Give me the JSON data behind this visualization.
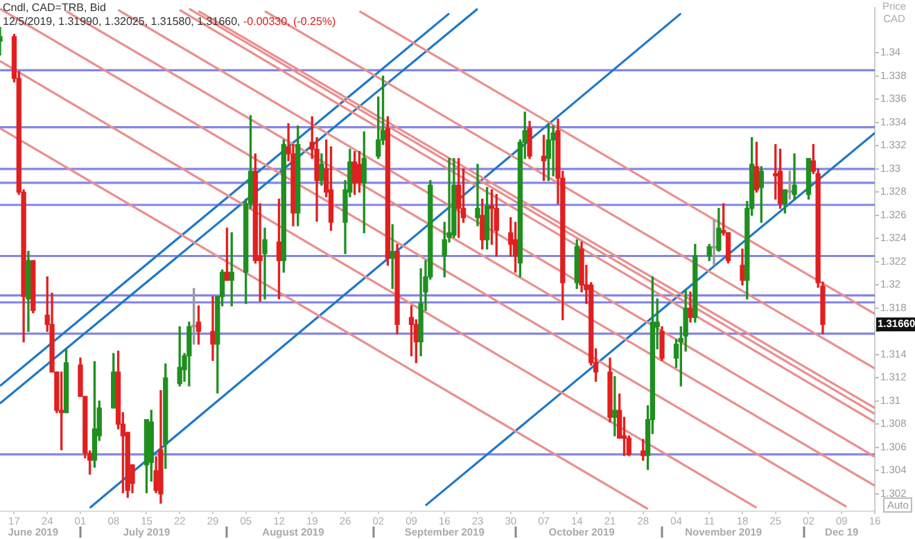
{
  "chart_data": {
    "type": "candlestick",
    "title": "Cndl, CAD=TRB, Bid",
    "subtitle": "12/5/2019, 1.31990, 1.32025, 1.31580, 1.31660,",
    "ylabel": "Price CAD",
    "annotations": [
      "-0.00330, (-0.25%)",
      "Auto",
      "1.31660"
    ],
    "legend": false,
    "grid": false,
    "xlim": [
      "2019-06-14",
      "2019-12-16"
    ],
    "xticks": [
      {
        "value": "2019-06-17",
        "label": "17"
      },
      {
        "value": "2019-06-24",
        "label": "24"
      },
      {
        "value": "2019-07-01",
        "label": "01"
      },
      {
        "value": "2019-07-08",
        "label": "08"
      },
      {
        "value": "2019-07-15",
        "label": "15"
      },
      {
        "value": "2019-07-22",
        "label": "22"
      },
      {
        "value": "2019-07-29",
        "label": "29"
      },
      {
        "value": "2019-08-05",
        "label": "05"
      },
      {
        "value": "2019-08-12",
        "label": "12"
      },
      {
        "value": "2019-08-19",
        "label": "19"
      },
      {
        "value": "2019-08-26",
        "label": "26"
      },
      {
        "value": "2019-09-02",
        "label": "02"
      },
      {
        "value": "2019-09-09",
        "label": "09"
      },
      {
        "value": "2019-09-16",
        "label": "16"
      },
      {
        "value": "2019-09-23",
        "label": "23"
      },
      {
        "value": "2019-09-30",
        "label": "30"
      },
      {
        "value": "2019-10-07",
        "label": "07"
      },
      {
        "value": "2019-10-14",
        "label": "14"
      },
      {
        "value": "2019-10-21",
        "label": "21"
      },
      {
        "value": "2019-10-28",
        "label": "28"
      },
      {
        "value": "2019-11-04",
        "label": "04"
      },
      {
        "value": "2019-11-11",
        "label": "11"
      },
      {
        "value": "2019-11-18",
        "label": "18"
      },
      {
        "value": "2019-11-25",
        "label": "25"
      },
      {
        "value": "2019-12-02",
        "label": "02"
      },
      {
        "value": "2019-12-09",
        "label": "09"
      },
      {
        "value": "2019-12-16",
        "label": "16"
      }
    ],
    "x2lim": [
      "2019-06-14",
      "2019-12-16"
    ],
    "x2ticks": [
      {
        "value": "2019-06-21",
        "label": "June 2019"
      },
      {
        "value": "2019-07-01",
        "label": null
      },
      {
        "value": "2019-07-15",
        "label": "July 2019"
      },
      {
        "value": "2019-08-01",
        "label": null
      },
      {
        "value": "2019-08-15",
        "label": "August 2019"
      },
      {
        "value": "2019-09-01",
        "label": null
      },
      {
        "value": "2019-09-16",
        "label": "September 2019"
      },
      {
        "value": "2019-10-01",
        "label": null
      },
      {
        "value": "2019-10-15",
        "label": "October 2019"
      },
      {
        "value": "2019-11-01",
        "label": null
      },
      {
        "value": "2019-11-14",
        "label": "November 2019"
      },
      {
        "value": "2019-12-01",
        "label": null
      },
      {
        "value": "2019-12-09",
        "label": "Dec 19"
      }
    ],
    "ylim": [
      1.3005,
      1.3439
    ],
    "yticks": [
      1.302,
      1.304,
      1.306,
      1.308,
      1.31,
      1.312,
      1.314,
      {
        "value": 1.316,
        "label": null
      },
      1.318,
      1.32,
      1.322,
      1.324,
      1.326,
      1.328,
      1.33,
      1.332,
      1.334,
      1.336,
      1.338,
      1.34
    ],
    "ref_lines": [
      {
        "axis": "y",
        "value": 1.3385,
        "color": "#8585e6"
      },
      {
        "axis": "y",
        "value": 1.3336,
        "color": "#8585e6"
      },
      {
        "axis": "y",
        "value": 1.33,
        "color": "#8585e6"
      },
      {
        "axis": "y",
        "value": 1.3288,
        "color": "#8585e6"
      },
      {
        "axis": "y",
        "value": 1.3269,
        "color": "#8585e6"
      },
      {
        "axis": "y",
        "value": 1.3225,
        "color": "#8585e6"
      },
      {
        "axis": "y",
        "value": 1.3191,
        "color": "#8585e6"
      },
      {
        "axis": "y",
        "value": 1.3185,
        "color": "#8585e6"
      },
      {
        "axis": "y",
        "value": 1.3158,
        "color": "#8585e6"
      },
      {
        "axis": "y",
        "value": 1.3054,
        "color": "#8585e6"
      }
    ],
    "x": [
      "2019-06-14",
      "2019-06-17",
      "2019-06-18",
      "2019-06-19",
      "2019-06-20",
      "2019-06-21",
      "2019-06-24",
      "2019-06-25",
      "2019-06-26",
      "2019-06-27",
      "2019-06-28",
      "2019-07-01",
      "2019-07-02",
      "2019-07-03",
      "2019-07-04",
      "2019-07-05",
      "2019-07-08",
      "2019-07-09",
      "2019-07-10",
      "2019-07-11",
      "2019-07-12",
      "2019-07-15",
      "2019-07-16",
      "2019-07-17",
      "2019-07-18",
      "2019-07-19",
      "2019-07-22",
      "2019-07-23",
      "2019-07-24",
      "2019-07-25",
      "2019-07-26",
      "2019-07-29",
      "2019-07-30",
      "2019-07-31",
      "2019-08-01",
      "2019-08-02",
      "2019-08-05",
      "2019-08-06",
      "2019-08-07",
      "2019-08-08",
      "2019-08-09",
      "2019-08-12",
      "2019-08-13",
      "2019-08-14",
      "2019-08-15",
      "2019-08-16",
      "2019-08-19",
      "2019-08-20",
      "2019-08-21",
      "2019-08-22",
      "2019-08-23",
      "2019-08-26",
      "2019-08-27",
      "2019-08-28",
      "2019-08-29",
      "2019-08-30",
      "2019-09-02",
      "2019-09-03",
      "2019-09-04",
      "2019-09-05",
      "2019-09-06",
      "2019-09-09",
      "2019-09-10",
      "2019-09-11",
      "2019-09-12",
      "2019-09-13",
      "2019-09-16",
      "2019-09-17",
      "2019-09-18",
      "2019-09-19",
      "2019-09-20",
      "2019-09-23",
      "2019-09-24",
      "2019-09-25",
      "2019-09-26",
      "2019-09-27",
      "2019-09-30",
      "2019-10-01",
      "2019-10-02",
      "2019-10-03",
      "2019-10-04",
      "2019-10-07",
      "2019-10-08",
      "2019-10-09",
      "2019-10-10",
      "2019-10-11",
      "2019-10-14",
      "2019-10-15",
      "2019-10-16",
      "2019-10-17",
      "2019-10-18",
      "2019-10-21",
      "2019-10-22",
      "2019-10-23",
      "2019-10-24",
      "2019-10-25",
      "2019-10-28",
      "2019-10-29",
      "2019-10-30",
      "2019-10-31",
      "2019-11-01",
      "2019-11-04",
      "2019-11-05",
      "2019-11-06",
      "2019-11-07",
      "2019-11-08",
      "2019-11-11",
      "2019-11-12",
      "2019-11-13",
      "2019-11-14",
      "2019-11-15",
      "2019-11-18",
      "2019-11-19",
      "2019-11-20",
      "2019-11-21",
      "2019-11-22",
      "2019-11-25",
      "2019-11-26",
      "2019-11-27",
      "2019-11-28",
      "2019-11-29",
      "2019-12-02",
      "2019-12-03",
      "2019-12-04",
      "2019-12-05"
    ],
    "ohlc": [
      [
        1.341,
        1.3422,
        1.3398,
        1.3414
      ],
      [
        1.3414,
        1.3416,
        1.3375,
        1.3378
      ],
      [
        1.3378,
        1.3384,
        1.3278,
        1.328
      ],
      [
        1.328,
        1.3282,
        1.3151,
        1.319
      ],
      [
        1.3188,
        1.3229,
        1.316,
        1.3221
      ],
      [
        1.3221,
        1.3221,
        1.3176,
        1.3178
      ],
      [
        1.3174,
        1.3207,
        1.316,
        1.3166
      ],
      [
        1.3166,
        1.3193,
        1.3125,
        1.3125
      ],
      [
        1.3125,
        1.3125,
        1.309,
        1.3092
      ],
      [
        1.3092,
        1.3125,
        1.3058,
        1.309
      ],
      [
        1.309,
        1.3145,
        1.309,
        1.3133
      ],
      [
        1.3131,
        1.3137,
        1.3104,
        1.3104
      ],
      [
        1.3104,
        1.3104,
        1.3051,
        1.3055
      ],
      [
        1.3055,
        1.3057,
        1.3037,
        1.3049
      ],
      [
        1.3049,
        1.3134,
        1.3043,
        1.3076
      ],
      [
        1.307,
        1.31,
        1.3066,
        1.3094
      ],
      [
        1.3094,
        1.3141,
        1.3094,
        1.3125
      ],
      [
        1.3125,
        1.3143,
        1.3076,
        1.308
      ],
      [
        1.308,
        1.309,
        1.3021,
        1.307
      ],
      [
        1.3073,
        1.3073,
        1.3017,
        1.3023
      ],
      [
        1.3045,
        1.3045,
        1.3021,
        1.3029
      ],
      [
        1.3045,
        1.3084,
        1.3021,
        1.3084
      ],
      [
        1.3047,
        1.3092,
        1.3031,
        1.3082
      ],
      [
        1.304,
        1.3052,
        1.3021,
        1.3023
      ],
      [
        1.3058,
        1.3109,
        1.3012,
        1.302
      ],
      [
        1.3063,
        1.3132,
        1.3042,
        1.312
      ],
      [
        1.3115,
        1.3164,
        1.3113,
        1.3129
      ],
      [
        1.3127,
        1.3141,
        1.3117,
        1.3139
      ],
      [
        1.3139,
        1.3168,
        1.3113,
        1.3164
      ],
      [
        1.3164,
        1.3197,
        1.3149,
        1.3164
      ],
      [
        1.3168,
        1.3182,
        1.3149,
        1.316
      ],
      [
        1.316,
        1.319,
        1.3135,
        1.3149
      ],
      [
        1.3149,
        1.319,
        1.3107,
        1.319
      ],
      [
        1.319,
        1.3213,
        1.3182,
        1.3211
      ],
      [
        1.3211,
        1.3249,
        1.3204,
        1.3204
      ],
      [
        1.3204,
        1.3245,
        1.3182,
        1.3211
      ],
      [
        1.3211,
        1.3274,
        1.3184,
        1.327
      ],
      [
        1.327,
        1.3346,
        1.3266,
        1.3298
      ],
      [
        1.3298,
        1.3313,
        1.3219,
        1.3221
      ],
      [
        1.3225,
        1.327,
        1.3186,
        1.3221
      ],
      [
        1.3227,
        1.3249,
        1.3188,
        1.3239
      ],
      [
        1.3237,
        1.3274,
        1.3188,
        1.3221
      ],
      [
        1.3221,
        1.3325,
        1.3211,
        1.3321
      ],
      [
        1.3319,
        1.3339,
        1.3307,
        1.3313
      ],
      [
        1.3313,
        1.3321,
        1.3251,
        1.3262
      ],
      [
        1.3262,
        1.3337,
        1.3251,
        1.3321
      ],
      [
        1.3323,
        1.3345,
        1.3309,
        1.3317
      ],
      [
        1.3317,
        1.3327,
        1.3255,
        1.329
      ],
      [
        1.329,
        1.3313,
        1.3286,
        1.3304
      ],
      [
        1.33,
        1.3325,
        1.3276,
        1.328
      ],
      [
        1.3282,
        1.3319,
        1.3247,
        1.3254
      ],
      [
        1.3254,
        1.329,
        1.3227,
        1.3282
      ],
      [
        1.328,
        1.3317,
        1.3276,
        1.3306
      ],
      [
        1.3306,
        1.3315,
        1.3278,
        1.3288
      ],
      [
        1.3304,
        1.3315,
        1.328,
        1.3288
      ],
      [
        1.3288,
        1.3332,
        1.3245,
        1.3309
      ],
      [
        1.3311,
        1.3362,
        1.3309,
        1.3325
      ],
      [
        1.3325,
        1.338,
        1.3321,
        1.3333
      ],
      [
        1.3335,
        1.3345,
        1.3217,
        1.3223
      ],
      [
        1.3223,
        1.3252,
        1.3197,
        1.3229
      ],
      [
        1.3229,
        1.3235,
        1.3158,
        1.3166
      ],
      [
        1.3172,
        1.3182,
        1.3139,
        1.3166
      ],
      [
        1.3166,
        1.317,
        1.3133,
        1.3151
      ],
      [
        1.3151,
        1.3214,
        1.3139,
        1.3184
      ],
      [
        1.3194,
        1.3221,
        1.3178,
        1.3207
      ],
      [
        1.3207,
        1.329,
        1.3205,
        1.3286
      ],
      [
        1.3225,
        1.3254,
        1.3207,
        1.3239
      ],
      [
        1.3241,
        1.3309,
        1.3237,
        1.3245
      ],
      [
        1.3243,
        1.3309,
        1.3241,
        1.3286
      ],
      [
        1.3286,
        1.3309,
        1.3241,
        1.3266
      ],
      [
        1.3266,
        1.33,
        1.3254,
        1.3258
      ],
      [
        1.3258,
        1.3304,
        1.3251,
        1.3266
      ],
      [
        1.326,
        1.3274,
        1.3231,
        1.3239
      ],
      [
        1.3239,
        1.3284,
        1.3231,
        1.3268
      ],
      [
        1.3268,
        1.3282,
        1.3235,
        1.3266
      ],
      [
        1.3266,
        1.3278,
        1.3225,
        1.3247
      ],
      [
        1.3245,
        1.3258,
        1.3225,
        1.3235
      ],
      [
        1.3239,
        1.3254,
        1.3211,
        1.3225
      ],
      [
        1.3219,
        1.3325,
        1.3207,
        1.3323
      ],
      [
        1.3323,
        1.3349,
        1.3309,
        1.3333
      ],
      [
        1.3335,
        1.3341,
        1.3309,
        1.3311
      ],
      [
        1.3311,
        1.3329,
        1.329,
        1.3307
      ],
      [
        1.3309,
        1.3339,
        1.329,
        1.3325
      ],
      [
        1.3325,
        1.3337,
        1.3294,
        1.3331
      ],
      [
        1.3333,
        1.3343,
        1.327,
        1.3292
      ],
      [
        1.3292,
        1.3298,
        1.317,
        1.3202
      ],
      [
        1.3202,
        1.3239,
        1.3197,
        1.3233
      ],
      [
        1.3231,
        1.3237,
        1.3194,
        1.32
      ],
      [
        1.32,
        1.3217,
        1.3184,
        1.3196
      ],
      [
        1.32,
        1.3202,
        1.3131,
        1.3133
      ],
      [
        1.3133,
        1.3145,
        1.3117,
        1.3125
      ],
      [
        1.3125,
        1.3137,
        1.3082,
        1.3086
      ],
      [
        1.3086,
        1.3121,
        1.307,
        1.3092
      ],
      [
        1.3092,
        1.3106,
        1.3068,
        1.3068
      ],
      [
        1.307,
        1.3086,
        1.3053,
        1.3068
      ],
      [
        1.3068,
        1.307,
        1.3053,
        1.3054
      ],
      [
        1.3057,
        1.3067,
        1.3049,
        1.3053
      ],
      [
        1.3053,
        1.3096,
        1.3041,
        1.3084
      ],
      [
        1.3084,
        1.3207,
        1.3072,
        1.3168
      ],
      [
        1.3164,
        1.3188,
        1.3145,
        1.3168
      ],
      [
        1.316,
        1.3164,
        1.3135,
        1.3137
      ],
      [
        1.3137,
        1.3153,
        1.3129,
        1.3149
      ],
      [
        1.3151,
        1.3164,
        1.3113,
        1.3154
      ],
      [
        1.3156,
        1.3196,
        1.3143,
        1.318
      ],
      [
        1.318,
        1.3194,
        1.3168,
        1.3172
      ],
      [
        1.3172,
        1.3235,
        1.3168,
        1.3225
      ],
      [
        1.3225,
        1.3235,
        1.3221,
        1.3233
      ],
      [
        1.3232,
        1.3256,
        1.3217,
        1.3232
      ],
      [
        1.323,
        1.3266,
        1.3229,
        1.3249
      ],
      [
        1.3247,
        1.327,
        1.3243,
        1.3245
      ],
      [
        1.3245,
        1.3245,
        1.3219,
        1.3221
      ],
      [
        1.3217,
        1.3231,
        1.32,
        1.3204
      ],
      [
        1.3204,
        1.3272,
        1.3188,
        1.3266
      ],
      [
        1.3266,
        1.3327,
        1.326,
        1.3304
      ],
      [
        1.3302,
        1.3323,
        1.328,
        1.3282
      ],
      [
        1.3284,
        1.3302,
        1.3254,
        1.3298
      ],
      [
        1.3296,
        1.3321,
        1.3274,
        1.3294
      ],
      [
        1.3298,
        1.3317,
        1.3266,
        1.327
      ],
      [
        1.327,
        1.3282,
        1.3262,
        1.3282
      ],
      [
        1.328,
        1.3298,
        1.3274,
        1.328
      ],
      [
        1.3278,
        1.3313,
        1.3274,
        1.3286
      ],
      [
        1.3278,
        1.3309,
        1.3274,
        1.3309
      ],
      [
        1.3307,
        1.3321,
        1.3296,
        1.3298
      ],
      [
        1.3296,
        1.33,
        1.3198,
        1.3202
      ],
      [
        1.3199,
        1.32025,
        1.3158,
        1.3166
      ]
    ],
    "colors": [
      "#1f8f1f",
      "#e02020",
      "#e02020",
      "#e02020",
      "#1f8f1f",
      "#e02020",
      "#e02020",
      "#e02020",
      "#e02020",
      "#e02020",
      "#1f8f1f",
      "#e02020",
      "#e02020",
      "#e02020",
      "#1f8f1f",
      "#1f8f1f",
      "#1f8f1f",
      "#e02020",
      "#e02020",
      "#e02020",
      "#e02020",
      "#1f8f1f",
      "#1f8f1f",
      "#e02020",
      "#e02020",
      "#1f8f1f",
      "#1f8f1f",
      "#1f8f1f",
      "#1f8f1f",
      "#999999",
      "#e02020",
      "#e02020",
      "#1f8f1f",
      "#1f8f1f",
      "#e02020",
      "#1f8f1f",
      "#1f8f1f",
      "#1f8f1f",
      "#e02020",
      "#e02020",
      "#1f8f1f",
      "#e02020",
      "#1f8f1f",
      "#e02020",
      "#e02020",
      "#1f8f1f",
      "#e02020",
      "#e02020",
      "#1f8f1f",
      "#e02020",
      "#e02020",
      "#1f8f1f",
      "#1f8f1f",
      "#e02020",
      "#e02020",
      "#1f8f1f",
      "#1f8f1f",
      "#1f8f1f",
      "#e02020",
      "#1f8f1f",
      "#e02020",
      "#e02020",
      "#e02020",
      "#1f8f1f",
      "#1f8f1f",
      "#1f8f1f",
      "#1f8f1f",
      "#1f8f1f",
      "#1f8f1f",
      "#e02020",
      "#e02020",
      "#1f8f1f",
      "#e02020",
      "#1f8f1f",
      "#e02020",
      "#e02020",
      "#e02020",
      "#e02020",
      "#1f8f1f",
      "#1f8f1f",
      "#e02020",
      "#e02020",
      "#1f8f1f",
      "#1f8f1f",
      "#e02020",
      "#e02020",
      "#1f8f1f",
      "#e02020",
      "#e02020",
      "#e02020",
      "#e02020",
      "#e02020",
      "#1f8f1f",
      "#e02020",
      "#e02020",
      "#e02020",
      "#e02020",
      "#1f8f1f",
      "#1f8f1f",
      "#1f8f1f",
      "#e02020",
      "#1f8f1f",
      "#1f8f1f",
      "#1f8f1f",
      "#e02020",
      "#1f8f1f",
      "#1f8f1f",
      "#999999",
      "#1f8f1f",
      "#e02020",
      "#e02020",
      "#e02020",
      "#1f8f1f",
      "#1f8f1f",
      "#e02020",
      "#1f8f1f",
      "#e02020",
      "#e02020",
      "#1f8f1f",
      "#999999",
      "#1f8f1f",
      "#1f8f1f",
      "#e02020",
      "#e02020",
      "#e02020"
    ],
    "series": [
      {
        "type": "line",
        "color": "#ea8f8f",
        "x": [
          "2019-06-14",
          "2019-10-29"
        ],
        "values": [
          1.3335,
          1.3007
        ]
      },
      {
        "type": "line",
        "color": "#ea8f8f",
        "x": [
          "2019-06-14",
          "2019-11-21"
        ],
        "values": [
          1.3393,
          1.3008
        ]
      },
      {
        "type": "line",
        "color": "#ea8f8f",
        "x": [
          "2019-06-14",
          "2019-12-10"
        ],
        "values": [
          1.3438,
          1.3009
        ]
      },
      {
        "type": "line",
        "color": "#ea8f8f",
        "x": [
          "2019-06-28",
          "2019-12-16"
        ],
        "values": [
          1.3436,
          1.3027
        ]
      },
      {
        "type": "line",
        "color": "#ea8f8f",
        "x": [
          "2019-07-09",
          "2019-12-16"
        ],
        "values": [
          1.3437,
          1.3052
        ]
      },
      {
        "type": "line",
        "color": "#ea8f8f",
        "x": [
          "2019-07-22",
          "2019-12-16"
        ],
        "values": [
          1.3437,
          1.3082
        ]
      },
      {
        "type": "line",
        "color": "#ea8f8f",
        "x": [
          "2019-07-24",
          "2019-12-16"
        ],
        "values": [
          1.3438,
          1.3089
        ]
      },
      {
        "type": "line",
        "color": "#ea8f8f",
        "x": [
          "2019-07-26",
          "2019-12-16"
        ],
        "values": [
          1.3436,
          1.3094
        ]
      },
      {
        "type": "line",
        "color": "#ea8f8f",
        "x": [
          "2019-08-09",
          "2019-12-16"
        ],
        "values": [
          1.3436,
          1.3128
        ]
      },
      {
        "type": "line",
        "color": "#ea8f8f",
        "x": [
          "2019-08-29",
          "2019-12-16"
        ],
        "values": [
          1.3436,
          1.3175
        ]
      },
      {
        "type": "line",
        "color": "#1f78c8",
        "x": [
          "2019-06-14",
          "2019-09-17"
        ],
        "values": [
          1.3113,
          1.3434
        ]
      },
      {
        "type": "line",
        "color": "#1f78c8",
        "x": [
          "2019-06-14",
          "2019-09-23"
        ],
        "values": [
          1.3098,
          1.3438
        ]
      },
      {
        "type": "line",
        "color": "#1f78c8",
        "x": [
          "2019-07-03",
          "2019-11-05"
        ],
        "values": [
          1.3008,
          1.3434
        ]
      },
      {
        "type": "line",
        "color": "#1f78c8",
        "x": [
          "2019-09-12",
          "2019-12-16"
        ],
        "values": [
          1.301,
          1.3331
        ]
      }
    ]
  }
}
